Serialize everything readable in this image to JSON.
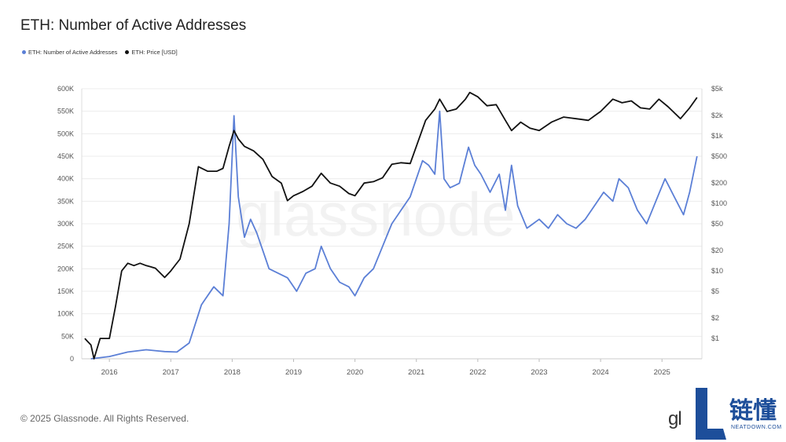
{
  "title": "ETH: Number of Active Addresses",
  "legend": [
    {
      "label": "ETH: Number of Active Addresses",
      "color": "#5b7fd6"
    },
    {
      "label": "ETH: Price [USD]",
      "color": "#111111"
    }
  ],
  "footer": "© 2025 Glassnode. All Rights Reserved.",
  "logo_text": "gl",
  "brand": {
    "cn": "链懂",
    "en": "NEATDOWN.COM"
  },
  "chart_data": {
    "type": "line",
    "title": "ETH: Number of Active Addresses",
    "x_ticks": [
      "2016",
      "2017",
      "2018",
      "2019",
      "2020",
      "2021",
      "2022",
      "2023",
      "2024",
      "2025"
    ],
    "left_axis": {
      "ticks": [
        "0",
        "50K",
        "100K",
        "150K",
        "200K",
        "250K",
        "300K",
        "350K",
        "400K",
        "450K",
        "500K",
        "550K",
        "600K"
      ],
      "ylim": [
        0,
        600000
      ]
    },
    "right_axis": {
      "scale": "log",
      "ticks": [
        "$1",
        "$2",
        "$5",
        "$10",
        "$20",
        "$50",
        "$100",
        "$200",
        "$500",
        "$1k",
        "$2k",
        "$5k"
      ],
      "tick_values": [
        1,
        2,
        5,
        10,
        20,
        50,
        100,
        200,
        500,
        1000,
        2000,
        5000
      ],
      "ylim": [
        0.5,
        5000
      ]
    },
    "grid": true,
    "legend_position": "top-left",
    "series": [
      {
        "name": "ETH: Number of Active Addresses",
        "axis": "left",
        "color": "#5b7fd6",
        "x": [
          2015.7,
          2016.0,
          2016.3,
          2016.6,
          2016.9,
          2017.1,
          2017.3,
          2017.5,
          2017.7,
          2017.85,
          2017.95,
          2018.03,
          2018.1,
          2018.2,
          2018.3,
          2018.4,
          2018.5,
          2018.6,
          2018.75,
          2018.9,
          2019.05,
          2019.2,
          2019.35,
          2019.45,
          2019.6,
          2019.75,
          2019.9,
          2020.0,
          2020.15,
          2020.3,
          2020.45,
          2020.6,
          2020.75,
          2020.9,
          2021.0,
          2021.1,
          2021.2,
          2021.3,
          2021.38,
          2021.45,
          2021.55,
          2021.7,
          2021.85,
          2021.95,
          2022.05,
          2022.2,
          2022.35,
          2022.45,
          2022.55,
          2022.65,
          2022.8,
          2022.9,
          2023.0,
          2023.15,
          2023.3,
          2023.45,
          2023.6,
          2023.75,
          2023.9,
          2024.05,
          2024.2,
          2024.3,
          2024.45,
          2024.6,
          2024.75,
          2024.9,
          2025.05,
          2025.2,
          2025.35,
          2025.45,
          2025.57
        ],
        "y": [
          0,
          5000,
          15000,
          20000,
          16000,
          15000,
          35000,
          120000,
          160000,
          140000,
          300000,
          540000,
          360000,
          270000,
          310000,
          280000,
          240000,
          200000,
          190000,
          180000,
          150000,
          190000,
          200000,
          250000,
          200000,
          170000,
          160000,
          140000,
          180000,
          200000,
          250000,
          300000,
          330000,
          360000,
          400000,
          440000,
          430000,
          410000,
          550000,
          400000,
          380000,
          390000,
          470000,
          430000,
          410000,
          370000,
          410000,
          330000,
          430000,
          340000,
          290000,
          300000,
          310000,
          290000,
          320000,
          300000,
          290000,
          310000,
          340000,
          370000,
          350000,
          400000,
          380000,
          330000,
          300000,
          350000,
          400000,
          360000,
          320000,
          370000,
          450000
        ]
      },
      {
        "name": "ETH: Price [USD]",
        "axis": "right",
        "color": "#111111",
        "x": [
          2015.6,
          2015.7,
          2015.75,
          2015.85,
          2016.0,
          2016.1,
          2016.2,
          2016.3,
          2016.4,
          2016.5,
          2016.6,
          2016.75,
          2016.9,
          2017.0,
          2017.15,
          2017.3,
          2017.45,
          2017.6,
          2017.75,
          2017.85,
          2017.95,
          2018.03,
          2018.1,
          2018.2,
          2018.35,
          2018.5,
          2018.65,
          2018.8,
          2018.9,
          2019.0,
          2019.15,
          2019.3,
          2019.45,
          2019.6,
          2019.75,
          2019.9,
          2020.0,
          2020.15,
          2020.3,
          2020.45,
          2020.6,
          2020.75,
          2020.9,
          2021.0,
          2021.15,
          2021.3,
          2021.38,
          2021.5,
          2021.65,
          2021.8,
          2021.87,
          2022.0,
          2022.15,
          2022.3,
          2022.45,
          2022.55,
          2022.7,
          2022.85,
          2023.0,
          2023.2,
          2023.4,
          2023.6,
          2023.8,
          2024.0,
          2024.2,
          2024.35,
          2024.5,
          2024.65,
          2024.8,
          2024.95,
          2025.1,
          2025.3,
          2025.45,
          2025.57
        ],
        "y": [
          1.0,
          0.8,
          0.5,
          1.0,
          1.0,
          3,
          10,
          13,
          12,
          13,
          12,
          11,
          8,
          10,
          15,
          50,
          350,
          300,
          300,
          330,
          700,
          1200,
          900,
          700,
          600,
          450,
          250,
          200,
          110,
          130,
          150,
          180,
          280,
          200,
          180,
          140,
          130,
          200,
          210,
          240,
          380,
          400,
          390,
          700,
          1700,
          2500,
          3500,
          2300,
          2500,
          3500,
          4400,
          3800,
          2800,
          2900,
          1700,
          1200,
          1600,
          1300,
          1200,
          1600,
          1900,
          1800,
          1700,
          2300,
          3500,
          3100,
          3300,
          2600,
          2500,
          3500,
          2700,
          1800,
          2600,
          3700
        ]
      }
    ]
  }
}
